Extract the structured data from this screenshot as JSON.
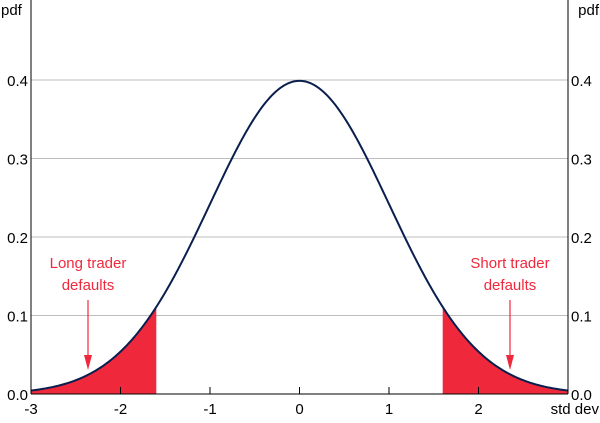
{
  "chart_data": {
    "type": "area",
    "title": "",
    "xlabel": "std dev",
    "ylabel_left": "pdf",
    "ylabel_right": "pdf",
    "xlim": [
      -3,
      3
    ],
    "ylim": [
      0,
      0.4
    ],
    "x_ticks": [
      "-3",
      "-2",
      "-1",
      "0",
      "1",
      "2"
    ],
    "y_ticks": [
      "0.0",
      "0.1",
      "0.2",
      "0.3",
      "0.4"
    ],
    "y_tick_values": [
      0,
      0.1,
      0.2,
      0.3,
      0.4
    ],
    "x_tick_values": [
      -3,
      -2,
      -1,
      0,
      1,
      2
    ],
    "grid": "horizontal",
    "series": [
      {
        "distribution": "standard normal",
        "mean": 0,
        "sd": 1,
        "color": "#0a1f4d"
      }
    ],
    "shaded_regions": [
      {
        "from": -3,
        "to": -1.6,
        "color": "#f0283c"
      },
      {
        "from": 1.6,
        "to": 3,
        "color": "#f0283c"
      }
    ],
    "annotations": [
      {
        "lines": [
          "Long trader",
          "defaults"
        ],
        "points_to_x": -2.4,
        "color": "#f0283c"
      },
      {
        "lines": [
          "Short trader",
          "defaults"
        ],
        "points_to_x": 2.4,
        "color": "#f0283c"
      }
    ]
  }
}
